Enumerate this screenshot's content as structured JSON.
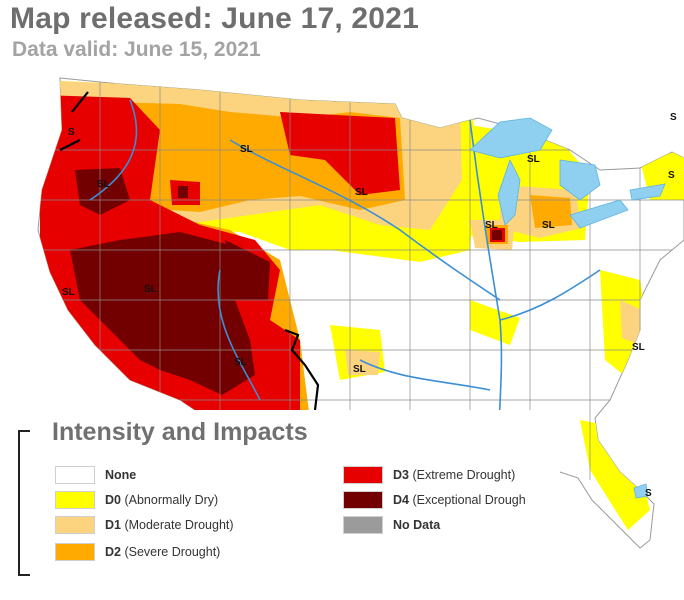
{
  "header": {
    "title": "Map released: June 17, 2021",
    "subtitle": "Data valid: June 15, 2021"
  },
  "map": {
    "region_labels": [
      "S",
      "SL",
      "SL",
      "SL",
      "SL",
      "SL",
      "SL",
      "SL",
      "SL",
      "SL",
      "SL",
      "SL",
      "S",
      "S",
      "S"
    ],
    "colors": {
      "none": "#ffffff",
      "d0": "#ffff00",
      "d1": "#fcd37f",
      "d2": "#ffaa00",
      "d3": "#e60000",
      "d4": "#730000",
      "no_data": "#9b9b9b",
      "water": "#8fd0f0",
      "rivers": "#3a8fd6",
      "boundaries": "#8a8a8a",
      "impact_lines": "#000000"
    }
  },
  "legend": {
    "title": "Intensity and Impacts",
    "items": [
      {
        "code": "None",
        "desc": "",
        "color": "#ffffff"
      },
      {
        "code": "D0",
        "desc": " (Abnormally Dry)",
        "color": "#ffff00"
      },
      {
        "code": "D1",
        "desc": " (Moderate Drought)",
        "color": "#fcd37f"
      },
      {
        "code": "D2",
        "desc": " (Severe Drought)",
        "color": "#ffaa00"
      },
      {
        "code": "D3",
        "desc": " (Extreme Drought)",
        "color": "#e60000"
      },
      {
        "code": "D4",
        "desc": " (Exceptional Drough",
        "color": "#730000"
      },
      {
        "code": "No Data",
        "desc": "",
        "color": "#9b9b9b"
      }
    ]
  }
}
